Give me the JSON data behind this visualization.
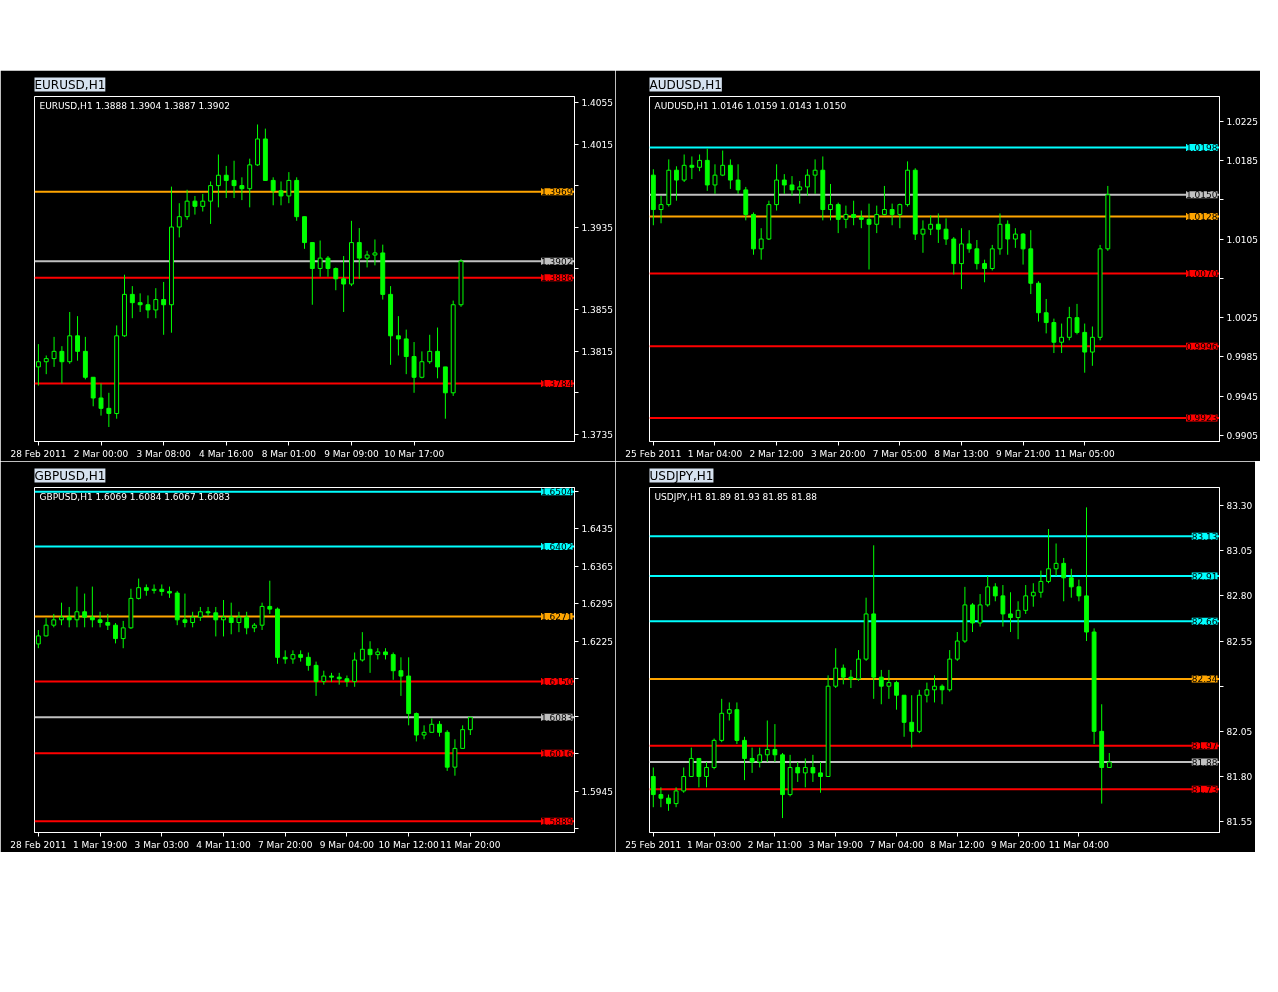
{
  "chart_data": [
    {
      "type": "candlestick",
      "title": "EURUSD,H1",
      "annotations": [
        "EURUSD,H1  1.3888 1.3904 1.3887 1.3902"
      ],
      "color": "#00ff00",
      "grid": false,
      "categories": [
        "28 Feb 2011",
        null,
        null,
        null,
        null,
        null,
        null,
        null,
        "2 Mar 00:00",
        null,
        null,
        null,
        null,
        null,
        null,
        null,
        "3 Mar 08:00",
        null,
        null,
        null,
        null,
        null,
        null,
        null,
        "4 Mar 16:00",
        null,
        null,
        null,
        null,
        null,
        null,
        null,
        "8 Mar 01:00",
        null,
        null,
        null,
        null,
        null,
        null,
        null,
        "9 Mar 09:00",
        null,
        null,
        null,
        null,
        null,
        null,
        null,
        "10 Mar 17:00",
        null,
        null,
        null,
        null,
        null,
        null,
        null,
        null,
        null,
        null,
        null,
        null,
        null,
        null,
        null,
        null,
        null,
        null,
        null,
        null
      ],
      "ohlc": [
        [
          1.38,
          1.3822,
          1.3782,
          1.3805
        ],
        [
          1.3805,
          1.3811,
          1.3793,
          1.3808
        ],
        [
          1.3808,
          1.3829,
          1.38,
          1.3815
        ],
        [
          1.3815,
          1.382,
          1.3784,
          1.3805
        ],
        [
          1.3805,
          1.3853,
          1.3803,
          1.383
        ],
        [
          1.383,
          1.3849,
          1.3806,
          1.3815
        ],
        [
          1.3815,
          1.3829,
          1.3788,
          1.379
        ],
        [
          1.379,
          1.379,
          1.3762,
          1.377
        ],
        [
          1.377,
          1.3784,
          1.3753,
          1.376
        ],
        [
          1.376,
          1.3775,
          1.3742,
          1.3755
        ],
        [
          1.3755,
          1.384,
          1.375,
          1.383
        ],
        [
          1.383,
          1.3889,
          1.3829,
          1.387
        ],
        [
          1.387,
          1.3878,
          1.3847,
          1.3862
        ],
        [
          1.3862,
          1.3871,
          1.3853,
          1.386
        ],
        [
          1.386,
          1.3869,
          1.3847,
          1.3855
        ],
        [
          1.3855,
          1.3876,
          1.3847,
          1.3865
        ],
        [
          1.3865,
          1.3882,
          1.3831,
          1.386
        ],
        [
          1.386,
          1.3974,
          1.3833,
          1.3935
        ],
        [
          1.3935,
          1.3958,
          1.3925,
          1.3945
        ],
        [
          1.3945,
          1.3971,
          1.3942,
          1.396
        ],
        [
          1.396,
          1.3965,
          1.3947,
          1.3955
        ],
        [
          1.3955,
          1.3967,
          1.395,
          1.396
        ],
        [
          1.396,
          1.3979,
          1.3938,
          1.3975
        ],
        [
          1.3975,
          1.4005,
          1.3954,
          1.3985
        ],
        [
          1.3985,
          1.3994,
          1.3963,
          1.398
        ],
        [
          1.398,
          1.3999,
          1.3963,
          1.3975
        ],
        [
          1.3975,
          1.3983,
          1.3961,
          1.3972
        ],
        [
          1.3972,
          1.4001,
          1.3954,
          1.3995
        ],
        [
          1.3995,
          1.4034,
          1.3994,
          1.402
        ],
        [
          1.402,
          1.403,
          1.398,
          1.398
        ],
        [
          1.398,
          1.3983,
          1.3956,
          1.397
        ],
        [
          1.397,
          1.3979,
          1.3956,
          1.3965
        ],
        [
          1.3965,
          1.3988,
          1.3958,
          1.398
        ],
        [
          1.398,
          1.3983,
          1.3941,
          1.3945
        ],
        [
          1.3945,
          1.3945,
          1.3914,
          1.392
        ],
        [
          1.392,
          1.392,
          1.386,
          1.3895
        ],
        [
          1.3895,
          1.3922,
          1.3887,
          1.3905
        ],
        [
          1.3905,
          1.3907,
          1.3887,
          1.3895
        ],
        [
          1.3895,
          1.3896,
          1.3874,
          1.3885
        ],
        [
          1.3885,
          1.3907,
          1.3853,
          1.388
        ],
        [
          1.388,
          1.3941,
          1.3878,
          1.392
        ],
        [
          1.392,
          1.3934,
          1.3885,
          1.3905
        ],
        [
          1.3905,
          1.3912,
          1.3896,
          1.3908
        ],
        [
          1.3908,
          1.3923,
          1.3898,
          1.391
        ],
        [
          1.391,
          1.3918,
          1.3865,
          1.387
        ],
        [
          1.387,
          1.3878,
          1.3802,
          1.383
        ],
        [
          1.383,
          1.3849,
          1.3811,
          1.3827
        ],
        [
          1.3827,
          1.3836,
          1.3793,
          1.381
        ],
        [
          1.381,
          1.3824,
          1.3775,
          1.379
        ],
        [
          1.379,
          1.3815,
          1.3789,
          1.3805
        ],
        [
          1.3805,
          1.3831,
          1.3803,
          1.3815
        ],
        [
          1.3815,
          1.3838,
          1.3789,
          1.38
        ],
        [
          1.38,
          1.38,
          1.375,
          1.3775
        ],
        [
          1.3775,
          1.3864,
          1.3772,
          1.386
        ],
        [
          1.386,
          1.3904,
          1.3858,
          1.3902
        ],
        null,
        null,
        null,
        null,
        null,
        null,
        null,
        null,
        null,
        null,
        null,
        null,
        null,
        null
      ],
      "ylim": [
        1.3728,
        1.4061
      ],
      "yticks": [
        1.4055,
        1.4015,
        {
          "value": 1.3975,
          "label": null
        },
        1.3935,
        {
          "value": 1.3895,
          "label": null
        },
        1.3855,
        1.3815,
        {
          "value": 1.3775,
          "label": null
        },
        1.3735
      ],
      "ref_lines": [
        {
          "axis": "y",
          "value": 1.3969,
          "label": "1.3969",
          "color": "#ffa500",
          "line_style": "solid"
        },
        {
          "axis": "y",
          "value": 1.3902,
          "label": "1.3902",
          "color": "#c0c0c0",
          "line_style": "solid"
        },
        {
          "axis": "y",
          "value": 1.3886,
          "label": "1.3886",
          "color": "#ff0000",
          "line_style": "solid"
        },
        {
          "axis": "y",
          "value": 1.3784,
          "label": "1.3784",
          "color": "#ff0000",
          "line_style": "solid"
        }
      ]
    },
    {
      "type": "candlestick",
      "title": "AUDUSD,H1",
      "annotations": [
        "AUDUSD,H1  1.0146 1.0159 1.0143 1.0150"
      ],
      "color": "#00ff00",
      "grid": false,
      "categories": [
        "25 Feb 2011",
        null,
        null,
        null,
        null,
        null,
        null,
        null,
        "1 Mar 04:00",
        null,
        null,
        null,
        null,
        null,
        null,
        null,
        "2 Mar 12:00",
        null,
        null,
        null,
        null,
        null,
        null,
        null,
        "3 Mar 20:00",
        null,
        null,
        null,
        null,
        null,
        null,
        null,
        "7 Mar 05:00",
        null,
        null,
        null,
        null,
        null,
        null,
        null,
        "8 Mar 13:00",
        null,
        null,
        null,
        null,
        null,
        null,
        null,
        "9 Mar 21:00",
        null,
        null,
        null,
        null,
        null,
        null,
        null,
        "11 Mar 05:00",
        null,
        null,
        null,
        null,
        null,
        null,
        null,
        null,
        null,
        null,
        null,
        null,
        null,
        null,
        null,
        null,
        null
      ],
      "ohlc": [
        [
          1.017,
          1.0176,
          1.0119,
          1.0135
        ],
        [
          1.0135,
          1.0149,
          1.0121,
          1.014
        ],
        [
          1.014,
          1.0186,
          1.0138,
          1.0175
        ],
        [
          1.0175,
          1.0179,
          1.0144,
          1.0165
        ],
        [
          1.0165,
          1.0191,
          1.0163,
          1.018
        ],
        [
          1.018,
          1.0189,
          1.0166,
          1.0178
        ],
        [
          1.0178,
          1.0191,
          1.0174,
          1.0185
        ],
        [
          1.0185,
          1.0197,
          1.0154,
          1.016
        ],
        [
          1.016,
          1.0181,
          1.0151,
          1.017
        ],
        [
          1.017,
          1.0195,
          1.0169,
          1.018
        ],
        [
          1.018,
          1.0186,
          1.0156,
          1.0165
        ],
        [
          1.0165,
          1.0181,
          1.0151,
          1.0155
        ],
        [
          1.0155,
          1.0158,
          1.0124,
          1.013
        ],
        [
          1.013,
          1.0132,
          1.0089,
          1.0095
        ],
        [
          1.0095,
          1.0116,
          1.0084,
          1.0105
        ],
        [
          1.0105,
          1.0144,
          1.0104,
          1.014
        ],
        [
          1.014,
          1.0181,
          1.0134,
          1.0165
        ],
        [
          1.0165,
          1.0171,
          1.0151,
          1.016
        ],
        [
          1.016,
          1.0169,
          1.0149,
          1.0155
        ],
        [
          1.0155,
          1.0164,
          1.0141,
          1.0158
        ],
        [
          1.0158,
          1.0176,
          1.0149,
          1.017
        ],
        [
          1.017,
          1.0186,
          1.0151,
          1.0175
        ],
        [
          1.0175,
          1.0189,
          1.0124,
          1.0135
        ],
        [
          1.0135,
          1.0161,
          1.0124,
          1.014
        ],
        [
          1.014,
          1.0142,
          1.0111,
          1.0125
        ],
        [
          1.0125,
          1.0139,
          1.0116,
          1.013
        ],
        [
          1.013,
          1.0144,
          1.0119,
          1.0127
        ],
        [
          1.0127,
          1.0134,
          1.0116,
          1.0125
        ],
        [
          1.0125,
          1.0141,
          1.0074,
          1.012
        ],
        [
          1.012,
          1.0139,
          1.0111,
          1.013
        ],
        [
          1.013,
          1.0159,
          1.0129,
          1.0135
        ],
        [
          1.0135,
          1.0141,
          1.0119,
          1.013
        ],
        [
          1.013,
          1.0141,
          1.0116,
          1.014
        ],
        [
          1.014,
          1.0184,
          1.0138,
          1.0175
        ],
        [
          1.0175,
          1.0177,
          1.0104,
          1.011
        ],
        [
          1.011,
          1.0124,
          1.0091,
          1.0115
        ],
        [
          1.0115,
          1.0129,
          1.0109,
          1.012
        ],
        [
          1.012,
          1.0131,
          1.0101,
          1.0115
        ],
        [
          1.0115,
          1.0126,
          1.0099,
          1.0105
        ],
        [
          1.0105,
          1.0107,
          1.0069,
          1.008
        ],
        [
          1.008,
          1.0116,
          1.0054,
          1.01
        ],
        [
          1.01,
          1.0114,
          1.0091,
          1.0095
        ],
        [
          1.0095,
          1.0104,
          1.0074,
          1.008
        ],
        [
          1.008,
          1.0084,
          1.0061,
          1.0075
        ],
        [
          1.0075,
          1.0099,
          1.0073,
          1.0095
        ],
        [
          1.0095,
          1.0131,
          1.0089,
          1.012
        ],
        [
          1.012,
          1.0124,
          1.0089,
          1.0105
        ],
        [
          1.0105,
          1.0116,
          1.0096,
          1.011
        ],
        [
          1.011,
          1.0111,
          1.0079,
          1.0095
        ],
        [
          1.0095,
          1.0114,
          1.0049,
          1.006
        ],
        [
          1.006,
          1.0062,
          1.0021,
          1.003
        ],
        [
          1.003,
          1.0044,
          1.0009,
          1.002
        ],
        [
          1.002,
          1.0024,
          0.9989,
          1.0
        ],
        [
          1.0,
          1.0019,
          0.9989,
          1.0005
        ],
        [
          1.0005,
          1.0036,
          1.0002,
          1.0025
        ],
        [
          1.0025,
          1.0039,
          1.0008,
          1.001
        ],
        [
          1.001,
          1.0019,
          0.9969,
          0.999
        ],
        [
          0.999,
          1.0016,
          0.9976,
          1.0005
        ],
        [
          1.0005,
          1.0099,
          1.0002,
          1.0095
        ],
        [
          1.0095,
          1.0159,
          1.0093,
          1.015
        ],
        null,
        null,
        null,
        null,
        null,
        null,
        null,
        null,
        null,
        null,
        null,
        null,
        null,
        null
      ],
      "ylim": [
        0.9899,
        1.025
      ],
      "yticks": [
        1.0225,
        1.0185,
        {
          "value": 1.0145,
          "label": null
        },
        1.0105,
        {
          "value": 1.0065,
          "label": null
        },
        1.0025,
        0.9985,
        0.9945,
        0.9905
      ],
      "ref_lines": [
        {
          "axis": "y",
          "value": 1.0198,
          "label": "1.0198",
          "color": "#00ffff",
          "line_style": "solid"
        },
        {
          "axis": "y",
          "value": 1.015,
          "label": "1.0150",
          "color": "#c0c0c0",
          "line_style": "solid"
        },
        {
          "axis": "y",
          "value": 1.0128,
          "label": "1.0128",
          "color": "#ffa500",
          "line_style": "solid"
        },
        {
          "axis": "y",
          "value": 1.007,
          "label": "1.0070",
          "color": "#ff0000",
          "line_style": "solid"
        },
        {
          "axis": "y",
          "value": 0.9996,
          "label": "0.9996",
          "color": "#ff0000",
          "line_style": "solid"
        },
        {
          "axis": "y",
          "value": 0.9923,
          "label": "0.9923",
          "color": "#ff0000",
          "line_style": "solid"
        }
      ]
    },
    {
      "type": "candlestick",
      "title": "GBPUSD,H1",
      "annotations": [
        "GBPUSD,H1  1.6069 1.6084 1.6067 1.6083"
      ],
      "color": "#00ff00",
      "grid": false,
      "categories": [
        "28 Feb 2011",
        null,
        null,
        null,
        null,
        null,
        null,
        null,
        "1 Mar 19:00",
        null,
        null,
        null,
        null,
        null,
        null,
        null,
        "3 Mar 03:00",
        null,
        null,
        null,
        null,
        null,
        null,
        null,
        "4 Mar 11:00",
        null,
        null,
        null,
        null,
        null,
        null,
        null,
        "7 Mar 20:00",
        null,
        null,
        null,
        null,
        null,
        null,
        null,
        "9 Mar 04:00",
        null,
        null,
        null,
        null,
        null,
        null,
        null,
        "10 Mar 12:00",
        null,
        null,
        null,
        null,
        null,
        null,
        null,
        "11 Mar 20:00",
        null,
        null,
        null,
        null,
        null,
        null,
        null,
        null,
        null,
        null,
        null,
        null,
        null
      ],
      "ohlc": [
        [
          1.622,
          1.6246,
          1.6212,
          1.6235
        ],
        [
          1.6235,
          1.6268,
          1.6234,
          1.6255
        ],
        [
          1.6255,
          1.6276,
          1.6251,
          1.6265
        ],
        [
          1.6265,
          1.6297,
          1.6255,
          1.627
        ],
        [
          1.627,
          1.6289,
          1.6251,
          1.6265
        ],
        [
          1.6265,
          1.6327,
          1.6251,
          1.628
        ],
        [
          1.628,
          1.6314,
          1.6251,
          1.627
        ],
        [
          1.627,
          1.6327,
          1.6251,
          1.6265
        ],
        [
          1.6265,
          1.628,
          1.6251,
          1.626
        ],
        [
          1.626,
          1.6276,
          1.6246,
          1.6255
        ],
        [
          1.6255,
          1.6259,
          1.6221,
          1.623
        ],
        [
          1.623,
          1.6263,
          1.6212,
          1.625
        ],
        [
          1.625,
          1.6323,
          1.6248,
          1.6305
        ],
        [
          1.6305,
          1.6342,
          1.6303,
          1.6325
        ],
        [
          1.6325,
          1.6331,
          1.631,
          1.632
        ],
        [
          1.632,
          1.6331,
          1.6314,
          1.6322
        ],
        [
          1.6322,
          1.6331,
          1.631,
          1.6318
        ],
        [
          1.6318,
          1.6327,
          1.6306,
          1.6315
        ],
        [
          1.6315,
          1.6319,
          1.6255,
          1.6265
        ],
        [
          1.6265,
          1.6314,
          1.6251,
          1.626
        ],
        [
          1.626,
          1.628,
          1.6251,
          1.627
        ],
        [
          1.627,
          1.6289,
          1.6263,
          1.628
        ],
        [
          1.628,
          1.6289,
          1.6272,
          1.6278
        ],
        [
          1.6278,
          1.6289,
          1.6234,
          1.6265
        ],
        [
          1.6265,
          1.6302,
          1.6234,
          1.627
        ],
        [
          1.627,
          1.6297,
          1.6238,
          1.626
        ],
        [
          1.626,
          1.628,
          1.6242,
          1.627
        ],
        [
          1.627,
          1.628,
          1.6238,
          1.625
        ],
        [
          1.625,
          1.6259,
          1.6242,
          1.6255
        ],
        [
          1.6255,
          1.6297,
          1.6246,
          1.629
        ],
        [
          1.629,
          1.6338,
          1.6276,
          1.6285
        ],
        [
          1.6285,
          1.6288,
          1.6183,
          1.6195
        ],
        [
          1.6195,
          1.6208,
          1.6183,
          1.6192
        ],
        [
          1.6192,
          1.6208,
          1.6183,
          1.62
        ],
        [
          1.62,
          1.6208,
          1.6187,
          1.6195
        ],
        [
          1.6195,
          1.6204,
          1.617,
          1.618
        ],
        [
          1.618,
          1.6187,
          1.6123,
          1.615
        ],
        [
          1.615,
          1.617,
          1.6144,
          1.616
        ],
        [
          1.616,
          1.6166,
          1.6149,
          1.6158
        ],
        [
          1.6158,
          1.6166,
          1.6144,
          1.6155
        ],
        [
          1.6155,
          1.6161,
          1.614,
          1.615
        ],
        [
          1.615,
          1.6204,
          1.614,
          1.619
        ],
        [
          1.619,
          1.6242,
          1.6187,
          1.621
        ],
        [
          1.621,
          1.6225,
          1.6166,
          1.62
        ],
        [
          1.62,
          1.6212,
          1.6191,
          1.6205
        ],
        [
          1.6205,
          1.6212,
          1.6191,
          1.62
        ],
        [
          1.62,
          1.6204,
          1.6153,
          1.617
        ],
        [
          1.617,
          1.6195,
          1.6123,
          1.616
        ],
        [
          1.616,
          1.6195,
          1.6068,
          1.609
        ],
        [
          1.609,
          1.6092,
          1.6038,
          1.605
        ],
        [
          1.605,
          1.6068,
          1.6042,
          1.6055
        ],
        [
          1.6055,
          1.6081,
          1.6055,
          1.607
        ],
        [
          1.607,
          1.6076,
          1.6047,
          1.6055
        ],
        [
          1.6055,
          1.6059,
          1.5983,
          1.599
        ],
        [
          1.599,
          1.6042,
          1.5974,
          1.6025
        ],
        [
          1.6025,
          1.6068,
          1.6025,
          1.606
        ],
        [
          1.606,
          1.6084,
          1.605,
          1.6083
        ],
        null,
        null,
        null,
        null,
        null,
        null,
        null,
        null,
        null,
        null,
        null,
        null,
        null
      ],
      "ylim": [
        1.5868,
        1.6512
      ],
      "yticks": [
        {
          "value": 1.6505,
          "label": null
        },
        1.6435,
        1.6365,
        1.6295,
        1.6225,
        {
          "value": 1.6155,
          "label": null
        },
        {
          "value": 1.6085,
          "label": null
        },
        {
          "value": 1.6015,
          "label": null
        },
        1.5945,
        {
          "value": 1.5875,
          "label": null
        }
      ],
      "ref_lines": [
        {
          "axis": "y",
          "value": 1.6504,
          "label": "1.6504",
          "color": "#00ffff",
          "line_style": "solid"
        },
        {
          "axis": "y",
          "value": 1.6402,
          "label": "1.6402",
          "color": "#00ffff",
          "line_style": "solid"
        },
        {
          "axis": "y",
          "value": 1.6271,
          "label": "1.6271",
          "color": "#ffa500",
          "line_style": "solid"
        },
        {
          "axis": "y",
          "value": 1.615,
          "label": "1.6150",
          "color": "#ff0000",
          "line_style": "solid"
        },
        {
          "axis": "y",
          "value": 1.6083,
          "label": "1.6083",
          "color": "#c0c0c0",
          "line_style": "solid"
        },
        {
          "axis": "y",
          "value": 1.6016,
          "label": "1.6016",
          "color": "#ff0000",
          "line_style": "solid"
        },
        {
          "axis": "y",
          "value": 1.5889,
          "label": "1.5889",
          "color": "#ff0000",
          "line_style": "solid"
        }
      ]
    },
    {
      "type": "candlestick",
      "title": "USDJPY,H1",
      "annotations": [
        "USDJPY,H1  81.89 81.93 81.85 81.88"
      ],
      "color": "#00ff00",
      "grid": false,
      "categories": [
        "25 Feb 2011",
        null,
        null,
        null,
        null,
        null,
        null,
        null,
        "1 Mar 03:00",
        null,
        null,
        null,
        null,
        null,
        null,
        null,
        "2 Mar 11:00",
        null,
        null,
        null,
        null,
        null,
        null,
        null,
        "3 Mar 19:00",
        null,
        null,
        null,
        null,
        null,
        null,
        null,
        "7 Mar 04:00",
        null,
        null,
        null,
        null,
        null,
        null,
        null,
        "8 Mar 12:00",
        null,
        null,
        null,
        null,
        null,
        null,
        null,
        "9 Mar 20:00",
        null,
        null,
        null,
        null,
        null,
        null,
        null,
        "11 Mar 04:00",
        null,
        null,
        null,
        null,
        null,
        null,
        null,
        null,
        null,
        null,
        null,
        null,
        null,
        null,
        null,
        null,
        null,
        null
      ],
      "ohlc": [
        [
          81.8,
          81.85,
          81.63,
          81.7
        ],
        [
          81.7,
          81.74,
          81.63,
          81.68
        ],
        [
          81.68,
          81.7,
          81.61,
          81.65
        ],
        [
          81.65,
          81.74,
          81.63,
          81.72
        ],
        [
          81.72,
          81.85,
          81.71,
          81.8
        ],
        [
          81.8,
          81.96,
          81.8,
          81.9
        ],
        [
          81.9,
          81.9,
          81.74,
          81.8
        ],
        [
          81.8,
          81.88,
          81.74,
          81.85
        ],
        [
          81.85,
          82.01,
          81.84,
          82.0
        ],
        [
          82.0,
          82.23,
          81.99,
          82.15
        ],
        [
          82.15,
          82.21,
          82.11,
          82.17
        ],
        [
          82.17,
          82.21,
          81.98,
          82.0
        ],
        [
          82.0,
          82.02,
          81.78,
          81.9
        ],
        [
          81.9,
          81.96,
          81.82,
          81.88
        ],
        [
          81.88,
          81.96,
          81.85,
          81.92
        ],
        [
          81.92,
          82.11,
          81.88,
          81.95
        ],
        [
          81.95,
          82.09,
          81.88,
          81.92
        ],
        [
          81.92,
          81.93,
          81.57,
          81.7
        ],
        [
          81.7,
          81.92,
          81.69,
          81.85
        ],
        [
          81.85,
          81.88,
          81.77,
          81.82
        ],
        [
          81.82,
          81.9,
          81.74,
          81.85
        ],
        [
          81.85,
          81.92,
          81.77,
          81.82
        ],
        [
          81.82,
          81.88,
          81.71,
          81.8
        ],
        [
          81.8,
          82.36,
          81.8,
          82.3
        ],
        [
          82.3,
          82.51,
          82.29,
          82.4
        ],
        [
          82.4,
          82.42,
          82.31,
          82.35
        ],
        [
          82.35,
          82.39,
          82.29,
          82.34
        ],
        [
          82.34,
          82.5,
          82.33,
          82.45
        ],
        [
          82.45,
          82.79,
          82.44,
          82.7
        ],
        [
          82.7,
          83.08,
          82.23,
          82.35
        ],
        [
          82.35,
          82.39,
          82.2,
          82.3
        ],
        [
          82.3,
          82.39,
          82.23,
          82.32
        ],
        [
          82.32,
          82.33,
          82.17,
          82.25
        ],
        [
          82.25,
          82.25,
          82.02,
          82.1
        ],
        [
          82.1,
          82.25,
          81.96,
          82.05
        ],
        [
          82.05,
          82.28,
          82.04,
          82.25
        ],
        [
          82.25,
          82.32,
          82.21,
          82.28
        ],
        [
          82.28,
          82.36,
          82.21,
          82.3
        ],
        [
          82.3,
          82.31,
          82.2,
          82.28
        ],
        [
          82.28,
          82.5,
          82.27,
          82.45
        ],
        [
          82.45,
          82.6,
          82.44,
          82.55
        ],
        [
          82.55,
          82.85,
          82.54,
          82.75
        ],
        [
          82.75,
          82.76,
          82.6,
          82.65
        ],
        [
          82.65,
          82.81,
          82.63,
          82.75
        ],
        [
          82.75,
          82.91,
          82.74,
          82.85
        ],
        [
          82.85,
          82.87,
          82.77,
          82.8
        ],
        [
          82.8,
          82.86,
          82.63,
          82.7
        ],
        [
          82.7,
          82.82,
          82.6,
          82.68
        ],
        [
          82.68,
          82.77,
          82.56,
          82.72
        ],
        [
          82.72,
          82.86,
          82.7,
          82.8
        ],
        [
          82.8,
          82.87,
          82.74,
          82.82
        ],
        [
          82.82,
          82.94,
          82.79,
          82.88
        ],
        [
          82.88,
          83.17,
          82.87,
          82.95
        ],
        [
          82.95,
          83.09,
          82.91,
          82.98
        ],
        [
          82.98,
          83.01,
          82.77,
          82.9
        ],
        [
          82.9,
          82.95,
          82.79,
          82.85
        ],
        [
          82.85,
          82.89,
          82.77,
          82.8
        ],
        [
          82.8,
          83.29,
          82.55,
          82.6
        ],
        [
          82.6,
          82.62,
          81.98,
          82.05
        ],
        [
          82.05,
          82.2,
          81.65,
          81.85
        ],
        [
          81.85,
          81.93,
          81.85,
          81.88
        ],
        null,
        null,
        null,
        null,
        null,
        null,
        null,
        null,
        null,
        null,
        null,
        null,
        null,
        null
      ],
      "ylim": [
        81.49,
        83.4
      ],
      "yticks": [
        {
          "value": 83.3,
          "label": "83.30"
        },
        83.05,
        {
          "value": 82.8,
          "label": "82.80"
        },
        82.55,
        {
          "value": 82.3,
          "label": null
        },
        82.05,
        {
          "value": 81.8,
          "label": "81.80"
        },
        81.55
      ],
      "ref_lines": [
        {
          "axis": "y",
          "value": 83.13,
          "label": "83.13",
          "color": "#00ffff",
          "line_style": "solid"
        },
        {
          "axis": "y",
          "value": 82.91,
          "label": "82.91",
          "color": "#00ffff",
          "line_style": "solid"
        },
        {
          "axis": "y",
          "value": 82.66,
          "label": "82.66",
          "color": "#00ffff",
          "line_style": "solid"
        },
        {
          "axis": "y",
          "value": 82.34,
          "label": "82.34",
          "color": "#ffa500",
          "line_style": "solid"
        },
        {
          "axis": "y",
          "value": 81.97,
          "label": "81.97",
          "color": "#ff0000",
          "line_style": "solid"
        },
        {
          "axis": "y",
          "value": 81.88,
          "label": "81.88",
          "color": "#c0c0c0",
          "line_style": "solid"
        },
        {
          "axis": "y",
          "value": 81.73,
          "label": "81.73",
          "color": "#ff0000",
          "line_style": "solid"
        }
      ]
    }
  ]
}
